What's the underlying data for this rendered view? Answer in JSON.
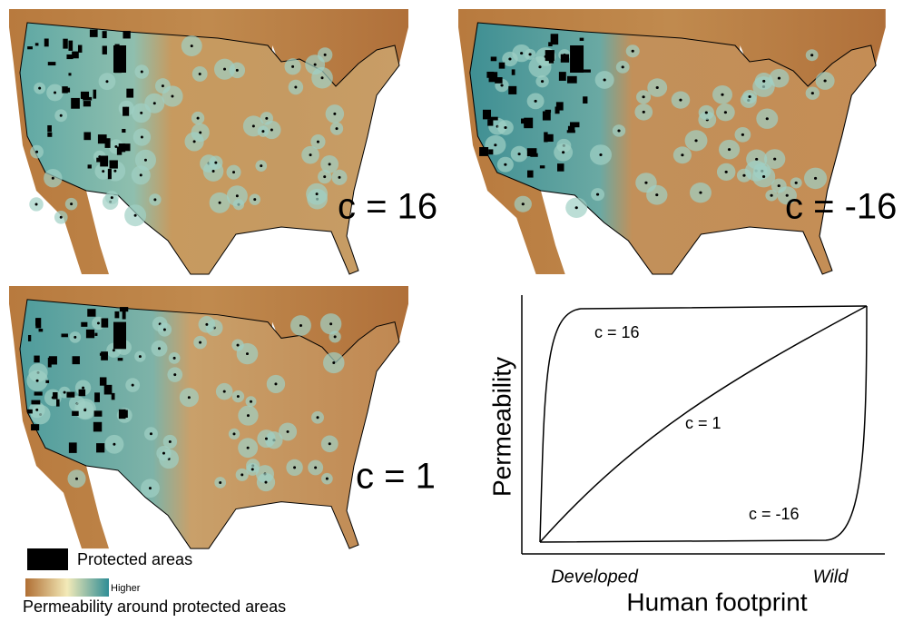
{
  "panels": [
    {
      "label": "c = 16"
    },
    {
      "label": "c = -16"
    },
    {
      "label": "c = 1"
    }
  ],
  "legend": {
    "protected": "Protected areas",
    "gradient_high": "Higher",
    "gradient_title": "Permeability around protected areas"
  },
  "schematic": {
    "y_label": "Permeability",
    "x_label": "Human footprint",
    "x_left": "Developed",
    "x_right": "Wild",
    "curves": [
      {
        "label": "c = 16"
      },
      {
        "label": "c = 1"
      },
      {
        "label": "c = -16"
      }
    ]
  }
}
